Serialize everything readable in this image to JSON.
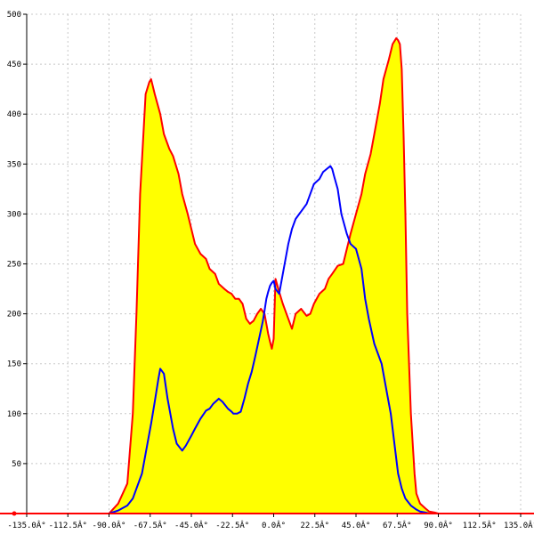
{
  "chart_data": {
    "type": "area",
    "title": "",
    "xlabel": "",
    "ylabel": "",
    "xlim": [
      -135,
      135
    ],
    "ylim": [
      0,
      500
    ],
    "grid": true,
    "x_ticks": [
      -135,
      -112.5,
      -90,
      -67.5,
      -45,
      -22.5,
      0,
      22.5,
      45,
      67.5,
      90,
      112.5,
      135
    ],
    "x_tick_labels": [
      "-135.0Â°",
      "-112.5Â°",
      "-90.0Â°",
      "-67.5Â°",
      "-45.0Â°",
      "-22.5Â°",
      "0.0Â°",
      "22.5Â°",
      "45.0Â°",
      "67.5Â°",
      "90.0Â°",
      "112.5Â°",
      "135.0Â°"
    ],
    "y_ticks": [
      50,
      100,
      150,
      200,
      250,
      300,
      350,
      400,
      450,
      500
    ],
    "y_tick_labels": [
      "50",
      "100",
      "150",
      "200",
      "250",
      "300",
      "350",
      "400",
      "450",
      "500"
    ],
    "series": [
      {
        "color": "#ff0000",
        "fill": "#ffff00",
        "x": [
          -135,
          -90,
          -85,
          -80,
          -77,
          -75,
          -73,
          -70,
          -68,
          -67,
          -65,
          -62,
          -60,
          -57,
          -55,
          -52,
          -50,
          -47,
          -45,
          -43,
          -40,
          -37,
          -35,
          -32,
          -30,
          -27,
          -25,
          -23,
          -21,
          -19,
          -17,
          -15,
          -13,
          -11,
          -9,
          -7,
          -5,
          -4,
          -3,
          -2,
          -1,
          0,
          1,
          3,
          5,
          8,
          10,
          12,
          15,
          18,
          20,
          22,
          25,
          28,
          30,
          32,
          35,
          38,
          40,
          42,
          45,
          48,
          50,
          53,
          55,
          58,
          60,
          63,
          65,
          67,
          68,
          69,
          70,
          71,
          72,
          73,
          75,
          77,
          78,
          80,
          83,
          85,
          88,
          90,
          135
        ],
        "y": [
          0,
          0,
          10,
          30,
          100,
          200,
          320,
          420,
          432,
          435,
          420,
          400,
          380,
          365,
          358,
          340,
          320,
          300,
          285,
          270,
          260,
          255,
          245,
          240,
          230,
          225,
          222,
          220,
          215,
          215,
          210,
          195,
          190,
          193,
          200,
          205,
          200,
          190,
          180,
          172,
          165,
          175,
          235,
          222,
          210,
          195,
          185,
          200,
          205,
          198,
          200,
          210,
          220,
          225,
          235,
          240,
          248,
          250,
          265,
          280,
          300,
          320,
          340,
          360,
          380,
          410,
          435,
          455,
          470,
          476,
          474,
          470,
          445,
          380,
          300,
          200,
          100,
          40,
          20,
          10,
          5,
          2,
          1,
          0,
          0
        ]
      },
      {
        "color": "#0000ff",
        "fill": "none",
        "x": [
          -135,
          -90,
          -85,
          -80,
          -77,
          -75,
          -72,
          -70,
          -67,
          -65,
          -63,
          -62,
          -60,
          -58,
          -55,
          -53,
          -50,
          -48,
          -45,
          -43,
          -40,
          -37,
          -35,
          -33,
          -30,
          -28,
          -25,
          -23,
          -22,
          -20,
          -18,
          -16,
          -14,
          -12,
          -10,
          -8,
          -6,
          -5,
          -4,
          -3,
          -2,
          -1,
          0,
          1,
          3,
          4,
          6,
          8,
          10,
          12,
          14,
          16,
          18,
          20,
          22,
          25,
          27,
          29,
          31,
          32,
          33,
          35,
          37,
          40,
          42,
          45,
          48,
          50,
          52,
          55,
          57,
          59,
          61,
          64,
          66,
          68,
          70,
          72,
          75,
          78,
          80,
          83,
          85,
          88,
          90,
          135
        ],
        "y": [
          0,
          0,
          3,
          8,
          15,
          25,
          40,
          60,
          90,
          112,
          135,
          145,
          140,
          115,
          85,
          70,
          63,
          68,
          78,
          85,
          95,
          103,
          105,
          110,
          115,
          112,
          105,
          102,
          100,
          100,
          102,
          115,
          130,
          142,
          158,
          175,
          192,
          203,
          215,
          222,
          228,
          231,
          233,
          225,
          220,
          230,
          250,
          270,
          285,
          295,
          300,
          305,
          310,
          320,
          330,
          335,
          342,
          345,
          348,
          345,
          338,
          325,
          300,
          280,
          270,
          265,
          245,
          215,
          195,
          170,
          160,
          150,
          130,
          100,
          70,
          40,
          25,
          15,
          8,
          4,
          2,
          1,
          0,
          0,
          0,
          0
        ]
      }
    ]
  }
}
